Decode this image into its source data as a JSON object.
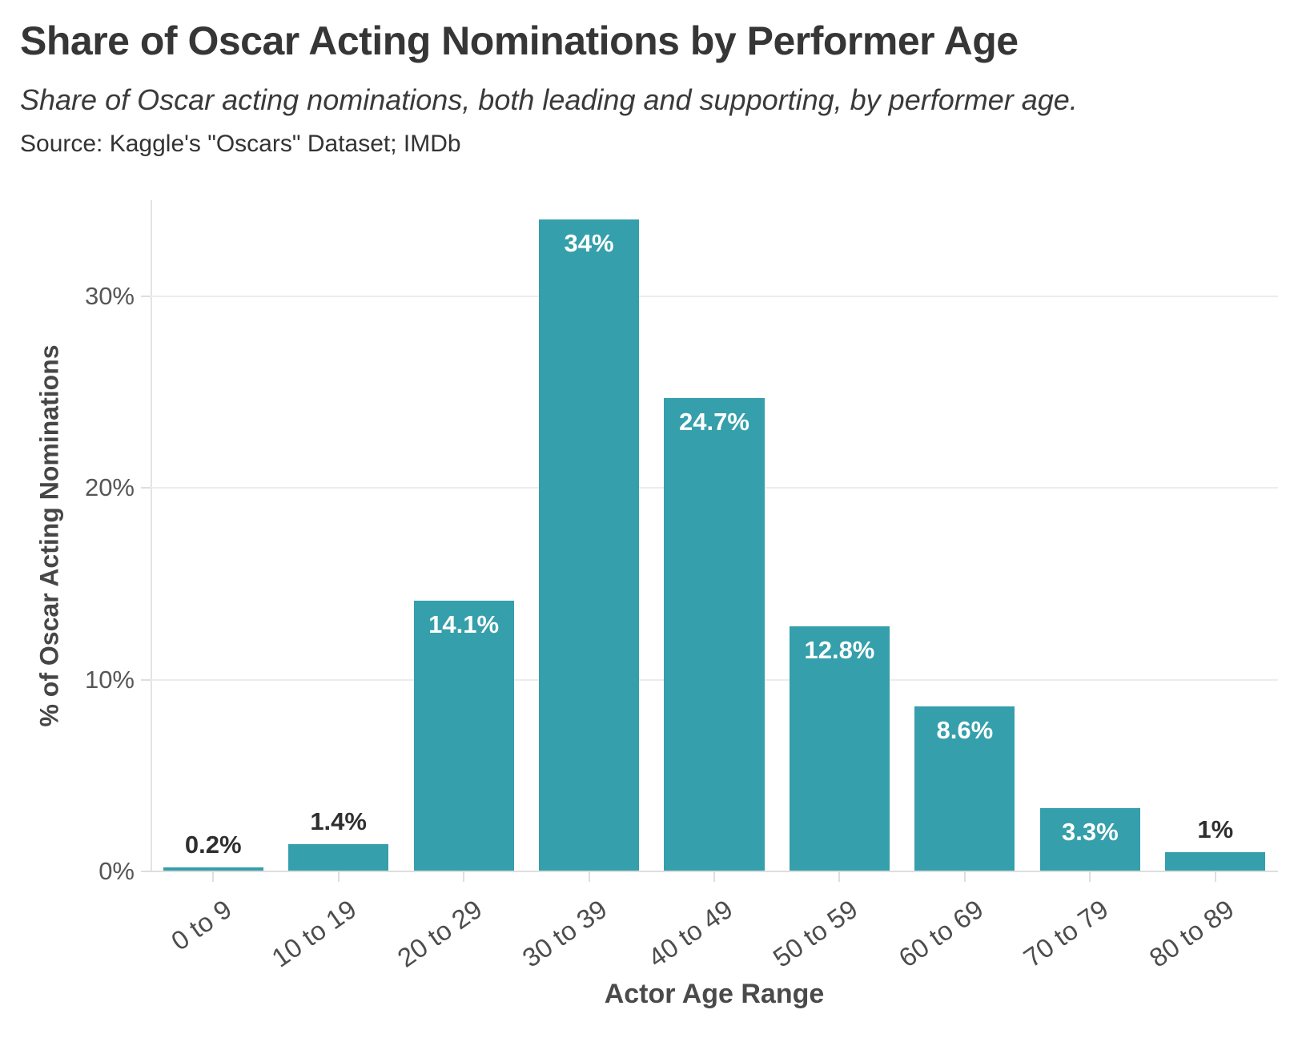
{
  "header": {
    "title": "Share of Oscar Acting Nominations by Performer Age",
    "subtitle": "Share of Oscar acting nominations, both leading and supporting, by performer age.",
    "source": "Source: Kaggle's \"Oscars\" Dataset; IMDb"
  },
  "chart_data": {
    "type": "bar",
    "title": "Share of Oscar Acting Nominations by Performer Age",
    "subtitle": "Share of Oscar acting nominations, both leading and supporting, by performer age.",
    "source": "Source: Kaggle's \"Oscars\" Dataset; IMDb",
    "categories": [
      "0 to 9",
      "10 to 19",
      "20 to 29",
      "30 to 39",
      "40 to 49",
      "50 to 59",
      "60 to 69",
      "70 to 79",
      "80 to 89"
    ],
    "values": [
      0.2,
      1.4,
      14.1,
      34,
      24.7,
      12.8,
      8.6,
      3.3,
      1
    ],
    "value_labels": [
      "0.2%",
      "1.4%",
      "14.1%",
      "34%",
      "24.7%",
      "12.8%",
      "8.6%",
      "3.3%",
      "1%"
    ],
    "label_inside_bar": [
      false,
      false,
      true,
      true,
      true,
      true,
      true,
      true,
      false
    ],
    "xlabel": "Actor Age Range",
    "ylabel": "% of Oscar Acting Nominations",
    "ylim": [
      0,
      35
    ],
    "y_ticks": [
      0,
      10,
      20,
      30
    ],
    "y_tick_labels": [
      "0%",
      "10%",
      "20%",
      "30%"
    ],
    "grid": true,
    "legend": "none",
    "colors": {
      "bar": "#359fab",
      "label_inside": "#ffffff",
      "label_outside": "#2f2f2f",
      "gridline": "#ececec",
      "axis_line": "#e3e3e3",
      "title_text": "#363636",
      "axis_text": "#4a4a4a"
    }
  }
}
